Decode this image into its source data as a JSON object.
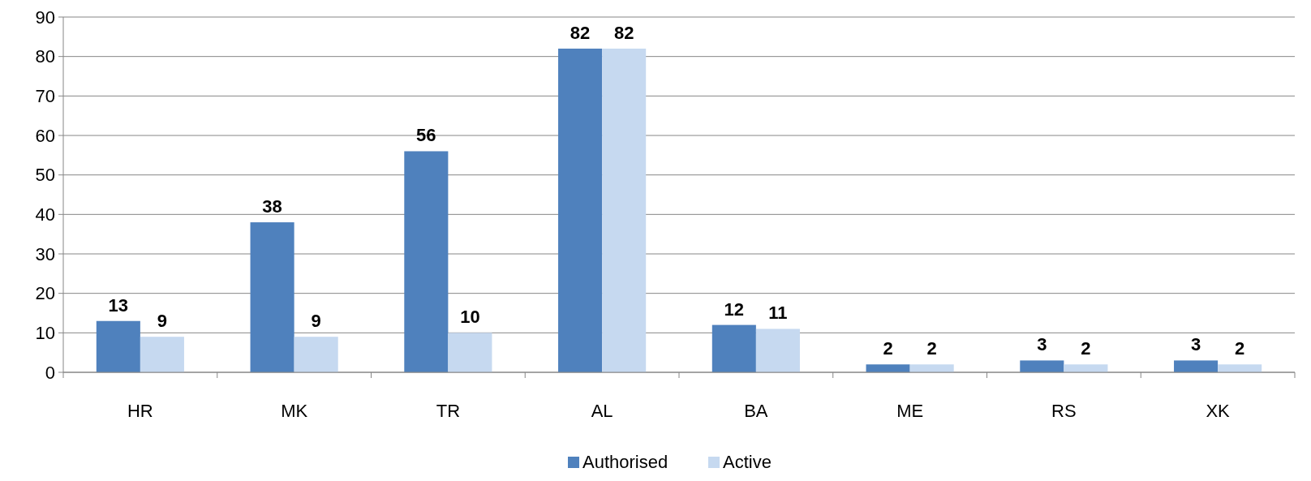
{
  "chart_data": {
    "type": "bar",
    "categories": [
      "HR",
      "MK",
      "TR",
      "AL",
      "BA",
      "ME",
      "RS",
      "XK"
    ],
    "series": [
      {
        "name": "Authorised",
        "color": "#4f81bd",
        "values": [
          13,
          38,
          56,
          82,
          12,
          2,
          3,
          3
        ]
      },
      {
        "name": "Active",
        "color": "#c6d9f0",
        "values": [
          9,
          9,
          10,
          82,
          11,
          2,
          2,
          2
        ]
      }
    ],
    "ylim": [
      0,
      90
    ],
    "yticks": [
      0,
      10,
      20,
      30,
      40,
      50,
      60,
      70,
      80,
      90
    ],
    "grid": "y",
    "legend": "bottom",
    "data_labels": true
  }
}
